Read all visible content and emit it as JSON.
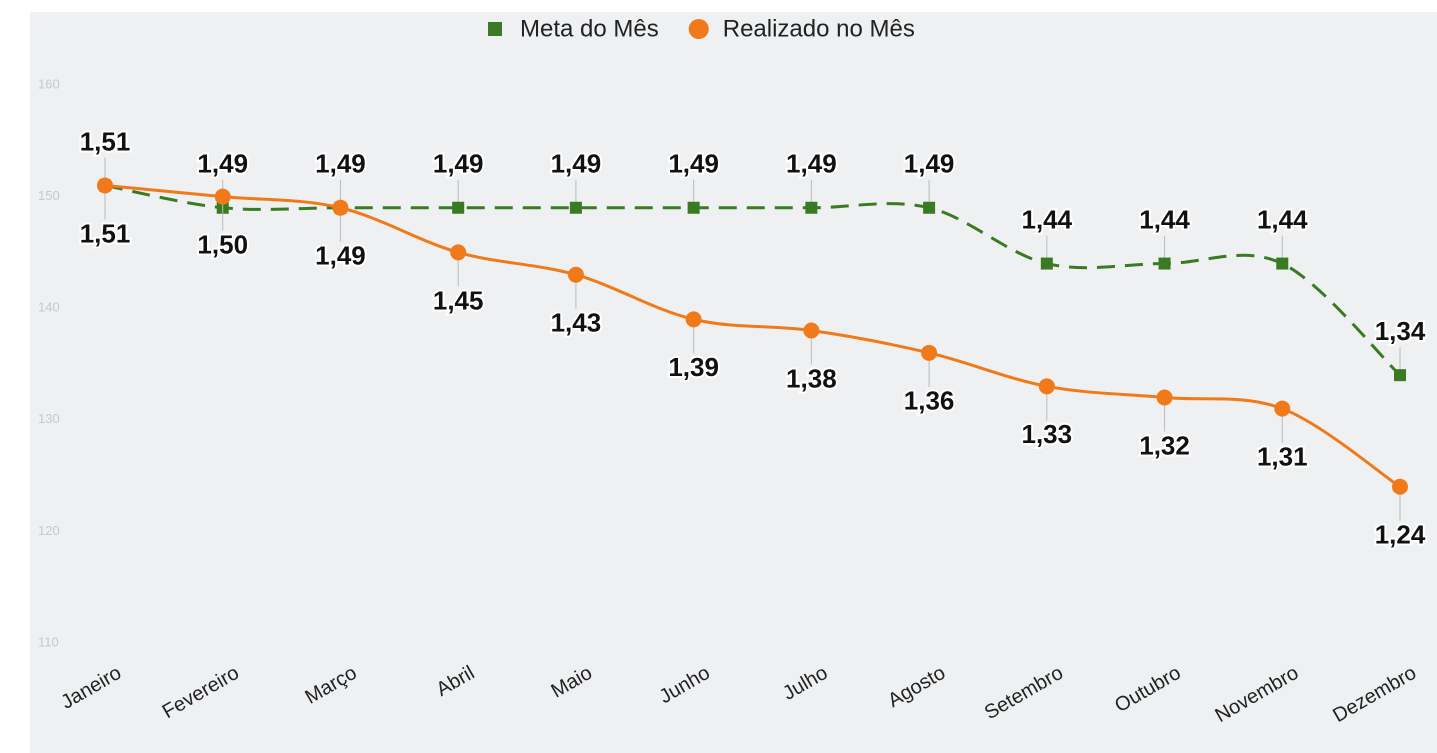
{
  "chart_data": {
    "type": "line",
    "categories": [
      "Janeiro",
      "Fevereiro",
      "Março",
      "Abril",
      "Maio",
      "Junho",
      "Julho",
      "Agosto",
      "Setembro",
      "Outubro",
      "Novembro",
      "Dezembro"
    ],
    "series": [
      {
        "name": "Meta do Mês",
        "color": "#3a7a22",
        "marker": "square",
        "dash": true,
        "values": [
          151,
          149,
          149,
          149,
          149,
          149,
          149,
          149,
          144,
          144,
          144,
          134
        ],
        "value_labels": [
          "1,51",
          "1,49",
          "1,49",
          "1,49",
          "1,49",
          "1,49",
          "1,49",
          "1,49",
          "1,44",
          "1,44",
          "1,44",
          "1,34"
        ]
      },
      {
        "name": "Realizado no Mês",
        "color": "#f07a1a",
        "marker": "circle",
        "dash": false,
        "values": [
          151,
          150,
          149,
          145,
          143,
          139,
          138,
          136,
          133,
          132,
          131,
          124
        ],
        "value_labels": [
          "1,51",
          "1,50",
          "1,49",
          "1,45",
          "1,43",
          "1,39",
          "1,38",
          "1,36",
          "1,33",
          "1,32",
          "1,31",
          "1,24"
        ]
      }
    ],
    "ylim": [
      110,
      160
    ],
    "yticks": [
      110,
      120,
      130,
      140,
      150,
      160
    ],
    "legend": "top"
  }
}
